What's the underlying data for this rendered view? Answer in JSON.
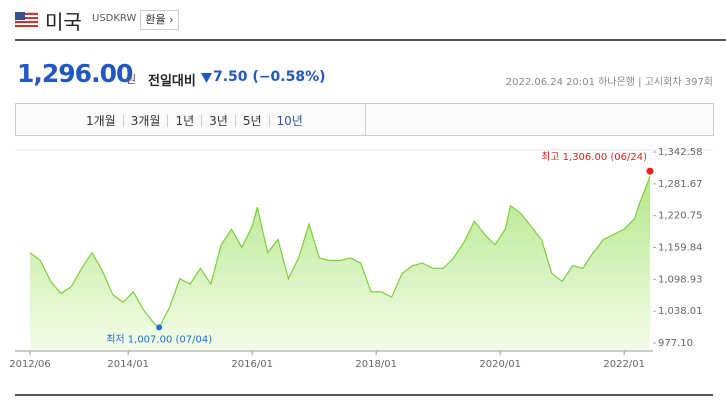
{
  "header": {
    "country": "미국",
    "code": "USDKRW",
    "button": "환율"
  },
  "price": {
    "value": "1,296.00",
    "unit": "원",
    "change_label": "전일대비",
    "change": "7.50 (−0.58%)"
  },
  "meta": {
    "datetime": "2022.06.24 20:01",
    "bank": "하나은행",
    "round": "고시회차 397회"
  },
  "tabs": {
    "items": [
      "1개월",
      "3개월",
      "1년",
      "3년",
      "5년",
      "10년"
    ],
    "selected": 5
  },
  "chart_data": {
    "type": "line",
    "x": [
      "2012/06",
      "2012/08",
      "2012/10",
      "2012/12",
      "2013/02",
      "2013/04",
      "2013/06",
      "2013/08",
      "2013/10",
      "2013/12",
      "2014/02",
      "2014/04",
      "2014/06",
      "2014/07",
      "2014/09",
      "2014/11",
      "2015/01",
      "2015/03",
      "2015/05",
      "2015/07",
      "2015/09",
      "2015/11",
      "2016/01",
      "2016/02",
      "2016/04",
      "2016/06",
      "2016/08",
      "2016/10",
      "2016/12",
      "2017/02",
      "2017/04",
      "2017/06",
      "2017/08",
      "2017/10",
      "2017/12",
      "2018/02",
      "2018/04",
      "2018/06",
      "2018/08",
      "2018/10",
      "2018/12",
      "2019/02",
      "2019/04",
      "2019/06",
      "2019/08",
      "2019/10",
      "2019/12",
      "2020/02",
      "2020/03",
      "2020/05",
      "2020/07",
      "2020/09",
      "2020/11",
      "2021/01",
      "2021/03",
      "2021/05",
      "2021/07",
      "2021/09",
      "2021/11",
      "2022/01",
      "2022/03",
      "2022/04",
      "2022/05",
      "2022/06"
    ],
    "series": [
      {
        "name": "USDKRW",
        "color": "#7ccf3a",
        "values": [
          1150,
          1135,
          1095,
          1072,
          1085,
          1120,
          1150,
          1115,
          1070,
          1055,
          1075,
          1040,
          1015,
          1007,
          1045,
          1100,
          1090,
          1120,
          1090,
          1165,
          1195,
          1160,
          1200,
          1237,
          1150,
          1175,
          1100,
          1140,
          1205,
          1140,
          1135,
          1135,
          1140,
          1130,
          1075,
          1075,
          1065,
          1110,
          1125,
          1130,
          1120,
          1120,
          1140,
          1170,
          1210,
          1185,
          1165,
          1195,
          1240,
          1225,
          1200,
          1175,
          1110,
          1095,
          1125,
          1120,
          1150,
          1175,
          1185,
          1195,
          1215,
          1245,
          1270,
          1296
        ]
      }
    ],
    "xlim": [
      "2012/06",
      "2022/06"
    ],
    "xticks": [
      "2012/06",
      "2014/01",
      "2016/01",
      "2018/01",
      "2020/01",
      "2022/01"
    ],
    "ylim": [
      977.1,
      1342.58
    ],
    "yticks": [
      {
        "value": 1342.58,
        "label": "1,342.58"
      },
      {
        "value": 1281.67,
        "label": "1,281.67"
      },
      {
        "value": 1220.75,
        "label": "1,220.75"
      },
      {
        "value": 1159.84,
        "label": "1,159.84"
      },
      {
        "value": 1098.93,
        "label": "1,098.93"
      },
      {
        "value": 1038.01,
        "label": "1,038.01"
      },
      {
        "value": 977.1,
        "label": "977.10"
      }
    ],
    "grid": false,
    "max_point": {
      "x": "2022/06",
      "value": 1306,
      "label": "최고 1,306.00 (06/24)",
      "color": "#e0201b"
    },
    "min_point": {
      "x": "2014/07",
      "value": 1007,
      "label": "최저 1,007.00 (07/04)",
      "color": "#1f6fd1"
    }
  }
}
